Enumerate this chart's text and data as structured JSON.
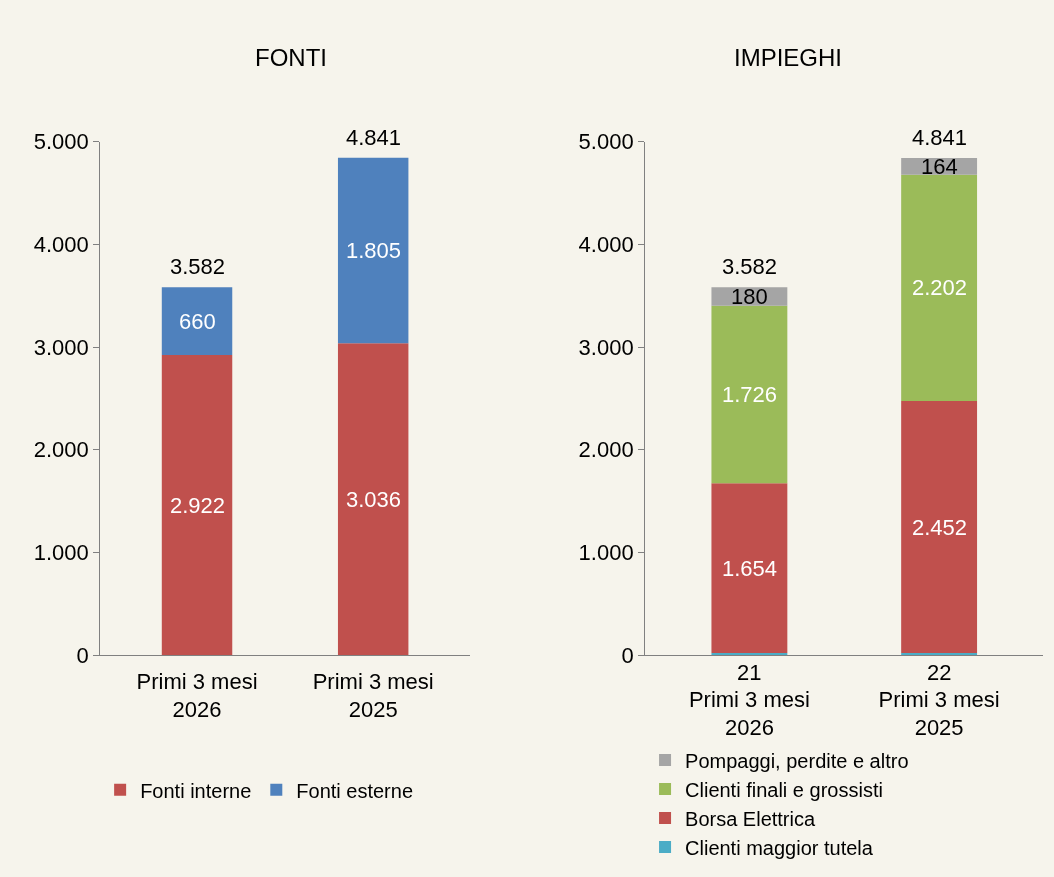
{
  "chart_data": [
    {
      "type": "bar",
      "title": "FONTI",
      "stacked": true,
      "categories": [
        "Primi 3 mesi\n2026",
        "Primi 3 mesi\n2025"
      ],
      "series": [
        {
          "name": "Fonti interne",
          "color": "#c0504d",
          "values": [
            2922,
            3036
          ],
          "value_labels": [
            "2.922",
            "3.036"
          ]
        },
        {
          "name": "Fonti esterne",
          "color": "#4f81bd",
          "values": [
            660,
            1805
          ],
          "value_labels": [
            "660",
            "1.805"
          ]
        }
      ],
      "totals": [
        "3.582",
        "4.841"
      ],
      "ylim": [
        0,
        5000
      ],
      "yticks": [
        {
          "value": 0,
          "label": "0"
        },
        {
          "value": 1000,
          "label": "1.000"
        },
        {
          "value": 2000,
          "label": "2.000"
        },
        {
          "value": 3000,
          "label": "3.000"
        },
        {
          "value": 4000,
          "label": "4.000"
        },
        {
          "value": 5000,
          "label": "5.000"
        }
      ],
      "grid": false,
      "legend": "bottom"
    },
    {
      "type": "bar",
      "title": "IMPIEGHI",
      "stacked": true,
      "categories": [
        "Primi 3 mesi\n2026",
        "Primi 3 mesi\n2025"
      ],
      "series": [
        {
          "name": "Clienti maggior tutela",
          "color": "#4bacc6",
          "values": [
            21,
            22
          ],
          "value_labels": [
            "21",
            "22"
          ]
        },
        {
          "name": "Borsa Elettrica",
          "color": "#c0504d",
          "values": [
            1654,
            2452
          ],
          "value_labels": [
            "1.654",
            "2.452"
          ]
        },
        {
          "name": "Clienti finali e grossisti",
          "color": "#9bbb59",
          "values": [
            1726,
            2202
          ],
          "value_labels": [
            "1.726",
            "2.202"
          ]
        },
        {
          "name": "Pompaggi, perdite e altro",
          "color": "#a5a5a5",
          "values": [
            180,
            164
          ],
          "value_labels": [
            "180",
            "164"
          ]
        }
      ],
      "totals": [
        "3.582",
        "4.841"
      ],
      "ylim": [
        0,
        5000
      ],
      "yticks": [
        {
          "value": 0,
          "label": "0"
        },
        {
          "value": 1000,
          "label": "1.000"
        },
        {
          "value": 2000,
          "label": "2.000"
        },
        {
          "value": 3000,
          "label": "3.000"
        },
        {
          "value": 4000,
          "label": "4.000"
        },
        {
          "value": 5000,
          "label": "5.000"
        }
      ],
      "grid": false,
      "legend": "bottom"
    }
  ]
}
